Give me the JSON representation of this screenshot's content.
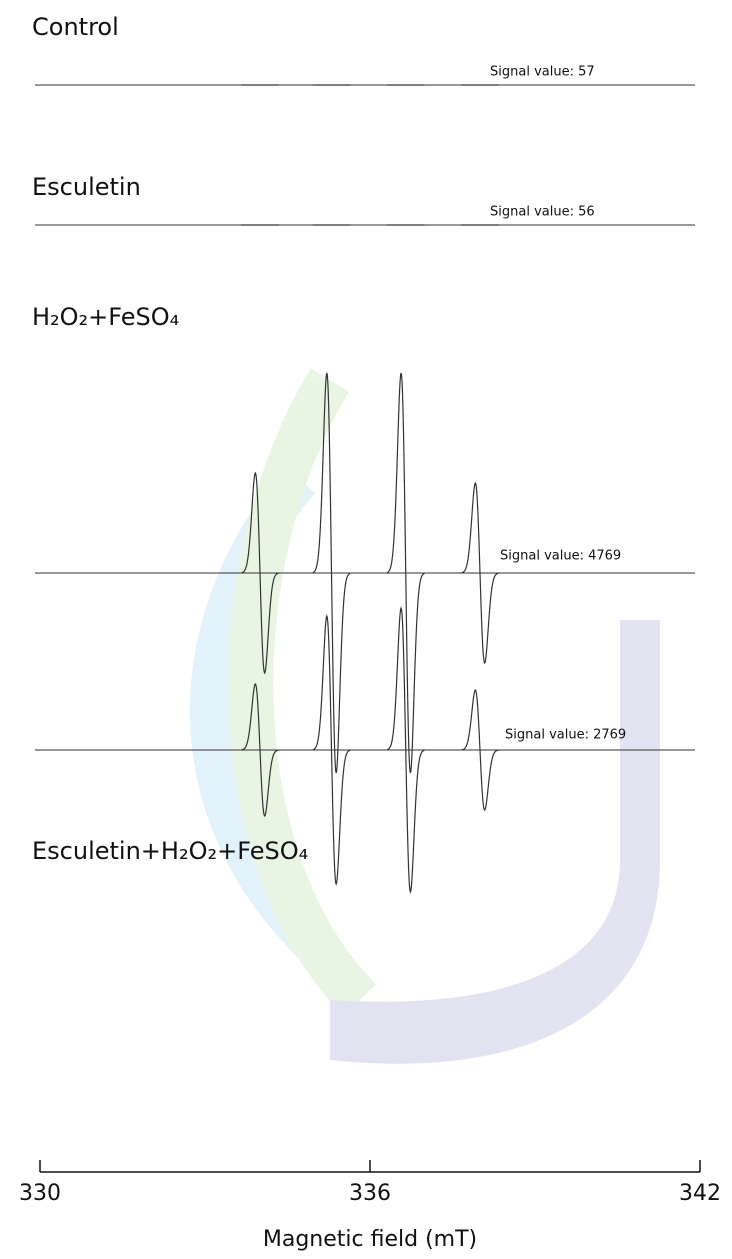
{
  "chart_data": {
    "type": "esr",
    "x_label": "Magnetic field (mT)",
    "xlim": [
      330,
      342
    ],
    "xticks": [
      330,
      336,
      342
    ],
    "peak_x": [
      334.0,
      335.3,
      336.65,
      338.0
    ],
    "color": "#333333",
    "series": [
      {
        "name": "Control",
        "values": [
          0,
          0,
          0,
          0
        ],
        "signal_value": 57,
        "signal_label": "Signal value: 57"
      },
      {
        "name": "Esculetin",
        "values": [
          0,
          0,
          0,
          0
        ],
        "signal_value": 56,
        "signal_label": "Signal value: 56"
      },
      {
        "name": "H₂O₂+FeSO₄",
        "values": [
          0.5,
          1,
          1,
          0.45
        ],
        "signal_value": 4769,
        "signal_label": "Signal value: 4769"
      },
      {
        "name": "Esculetin+H₂O₂+FeSO₄",
        "values": [
          0.33,
          0.67,
          0.71,
          0.3
        ],
        "signal_value": 2769,
        "signal_label": "Signal value: 2769"
      }
    ]
  }
}
